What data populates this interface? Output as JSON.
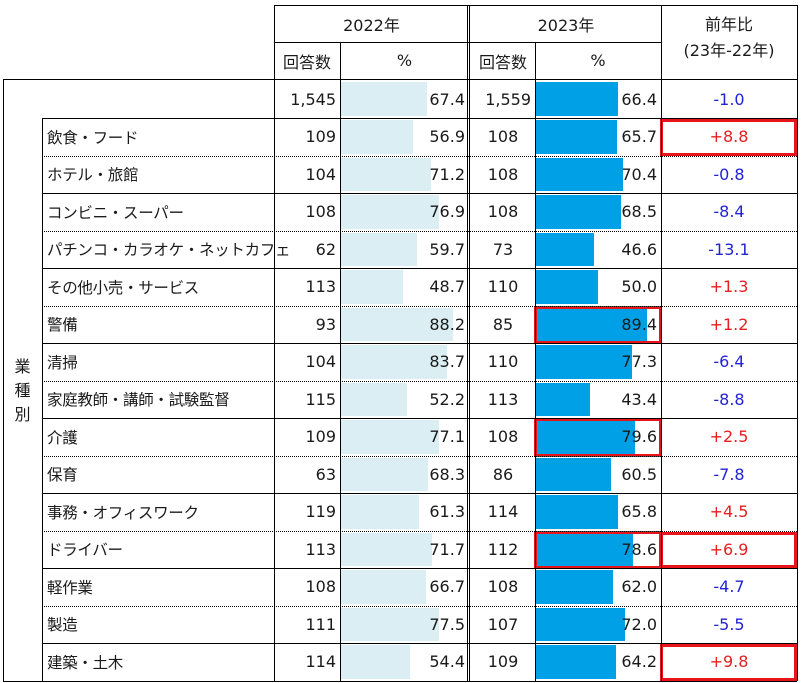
{
  "chart_data": {
    "type": "table",
    "years": [
      "2022年",
      "2023年"
    ],
    "columns": {
      "count": "回答数",
      "percent": "%",
      "diff_line1": "前年比",
      "diff_line2": "(23年-22年)"
    },
    "group_label": "業種別",
    "total": {
      "n2022": "1,545",
      "p2022": 67.4,
      "n2023": "1,559",
      "p2023": 66.4,
      "diff": "-1.0"
    },
    "rows": [
      {
        "label": "飲食・フード",
        "n2022": "109",
        "p2022": 56.9,
        "n2023": "108",
        "p2023": 65.7,
        "diff": "+8.8",
        "highlight_pct2023": false,
        "highlight_diff": true
      },
      {
        "label": "ホテル・旅館",
        "n2022": "104",
        "p2022": 71.2,
        "n2023": "108",
        "p2023": 70.4,
        "diff": "-0.8",
        "highlight_pct2023": false,
        "highlight_diff": false
      },
      {
        "label": "コンビニ・スーパー",
        "n2022": "108",
        "p2022": 76.9,
        "n2023": "108",
        "p2023": 68.5,
        "diff": "-8.4",
        "highlight_pct2023": false,
        "highlight_diff": false
      },
      {
        "label": "パチンコ・カラオケ・ネットカフェ",
        "n2022": "62",
        "p2022": 59.7,
        "n2023": "73",
        "p2023": 46.6,
        "diff": "-13.1",
        "highlight_pct2023": false,
        "highlight_diff": false
      },
      {
        "label": "その他小売・サービス",
        "n2022": "113",
        "p2022": 48.7,
        "n2023": "110",
        "p2023": 50.0,
        "diff": "+1.3",
        "highlight_pct2023": false,
        "highlight_diff": false
      },
      {
        "label": "警備",
        "n2022": "93",
        "p2022": 88.2,
        "n2023": "85",
        "p2023": 89.4,
        "diff": "+1.2",
        "highlight_pct2023": true,
        "highlight_diff": false
      },
      {
        "label": "清掃",
        "n2022": "104",
        "p2022": 83.7,
        "n2023": "110",
        "p2023": 77.3,
        "diff": "-6.4",
        "highlight_pct2023": false,
        "highlight_diff": false
      },
      {
        "label": "家庭教師・講師・試験監督",
        "n2022": "115",
        "p2022": 52.2,
        "n2023": "113",
        "p2023": 43.4,
        "diff": "-8.8",
        "highlight_pct2023": false,
        "highlight_diff": false
      },
      {
        "label": "介護",
        "n2022": "109",
        "p2022": 77.1,
        "n2023": "108",
        "p2023": 79.6,
        "diff": "+2.5",
        "highlight_pct2023": true,
        "highlight_diff": false
      },
      {
        "label": "保育",
        "n2022": "63",
        "p2022": 68.3,
        "n2023": "86",
        "p2023": 60.5,
        "diff": "-7.8",
        "highlight_pct2023": false,
        "highlight_diff": false
      },
      {
        "label": "事務・オフィスワーク",
        "n2022": "119",
        "p2022": 61.3,
        "n2023": "114",
        "p2023": 65.8,
        "diff": "+4.5",
        "highlight_pct2023": false,
        "highlight_diff": false
      },
      {
        "label": "ドライバー",
        "n2022": "113",
        "p2022": 71.7,
        "n2023": "112",
        "p2023": 78.6,
        "diff": "+6.9",
        "highlight_pct2023": true,
        "highlight_diff": true
      },
      {
        "label": "軽作業",
        "n2022": "108",
        "p2022": 66.7,
        "n2023": "108",
        "p2023": 62.0,
        "diff": "-4.7",
        "highlight_pct2023": false,
        "highlight_diff": false
      },
      {
        "label": "製造",
        "n2022": "111",
        "p2022": 77.5,
        "n2023": "107",
        "p2023": 72.0,
        "diff": "-5.5",
        "highlight_pct2023": false,
        "highlight_diff": false
      },
      {
        "label": "建築・土木",
        "n2022": "114",
        "p2022": 54.4,
        "n2023": "109",
        "p2023": 64.2,
        "diff": "+9.8",
        "highlight_pct2023": false,
        "highlight_diff": true
      }
    ],
    "bar_scale_max": 100,
    "colors": {
      "bar2022": "#daeef3",
      "bar2023": "#00a0e6",
      "positive": "#e52020",
      "negative": "#2323d4",
      "highlight": "#e8141c",
      "grid": "#000000"
    }
  }
}
